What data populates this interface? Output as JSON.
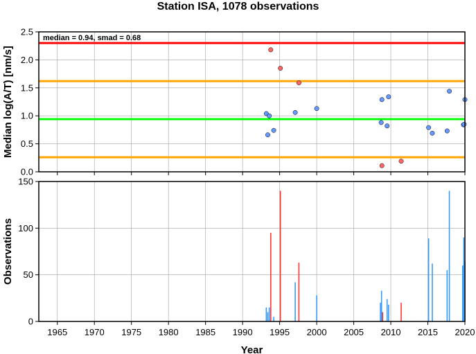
{
  "title": "Station ISA, 1078 observations",
  "chart_data": [
    {
      "type": "scatter",
      "ylabel": "Median log(A/T) [nm/s]",
      "xlim": [
        1962.5,
        2020
      ],
      "ylim": [
        0,
        2.5
      ],
      "yticks": [
        0,
        0.5,
        1,
        1.5,
        2,
        2.5
      ],
      "ytick_labels": [
        "0.0",
        "0.5",
        "1.0",
        "1.5",
        "2.0",
        "2.5"
      ],
      "grid": true,
      "annotation": "median = 0.94, smad = 0.68",
      "reference_lines": [
        {
          "value": 2.3,
          "color": "#ff0000"
        },
        {
          "value": 1.62,
          "color": "#ffa500"
        },
        {
          "value": 0.94,
          "color": "#00ff00"
        },
        {
          "value": 0.26,
          "color": "#ffa500"
        }
      ],
      "series": [
        {
          "color": "#6699ff",
          "points": [
            [
              1993.2,
              1.04
            ],
            [
              1993.4,
              0.66
            ],
            [
              1993.6,
              1.0
            ],
            [
              1994.2,
              0.74
            ],
            [
              1997.1,
              1.06
            ],
            [
              2000.0,
              1.13
            ],
            [
              2008.7,
              0.88
            ],
            [
              2008.8,
              1.29
            ],
            [
              2009.5,
              0.82
            ],
            [
              2009.7,
              1.34
            ],
            [
              2015.1,
              0.79
            ],
            [
              2015.6,
              0.69
            ],
            [
              2017.6,
              0.73
            ],
            [
              2017.9,
              1.44
            ],
            [
              2019.8,
              0.84
            ],
            [
              2019.9,
              0.85
            ],
            [
              2020.0,
              1.29
            ]
          ]
        },
        {
          "color": "#ff6666",
          "points": [
            [
              1993.8,
              2.18
            ],
            [
              1995.1,
              1.85
            ],
            [
              1997.6,
              1.59
            ],
            [
              2008.8,
              0.11
            ],
            [
              2011.4,
              0.19
            ]
          ]
        }
      ]
    },
    {
      "type": "bar",
      "ylabel": "Observations",
      "xlabel": "Year",
      "xlim": [
        1962.5,
        2020
      ],
      "ylim": [
        0,
        150
      ],
      "yticks": [
        0,
        50,
        100,
        150
      ],
      "ytick_labels": [
        "0",
        "50",
        "100",
        "150"
      ],
      "xticks": [
        1965,
        1970,
        1975,
        1980,
        1985,
        1990,
        1995,
        2000,
        2005,
        2010,
        2015,
        2020
      ],
      "xtick_labels": [
        "1965",
        "1970",
        "1975",
        "1980",
        "1985",
        "1990",
        "1995",
        "2000",
        "2005",
        "2010",
        "2015",
        "2020"
      ],
      "grid": true,
      "bars": [
        {
          "x": 1993.2,
          "value": 15,
          "color": "#3399ff"
        },
        {
          "x": 1993.4,
          "value": 10,
          "color": "#3399ff"
        },
        {
          "x": 1993.6,
          "value": 15,
          "color": "#3399ff"
        },
        {
          "x": 1993.8,
          "value": 95,
          "color": "#ff3333"
        },
        {
          "x": 1994.2,
          "value": 5,
          "color": "#3399ff"
        },
        {
          "x": 1995.1,
          "value": 140,
          "color": "#ff3333"
        },
        {
          "x": 1997.1,
          "value": 42,
          "color": "#3399ff"
        },
        {
          "x": 1997.6,
          "value": 63,
          "color": "#ff3333"
        },
        {
          "x": 2000.0,
          "value": 28,
          "color": "#3399ff"
        },
        {
          "x": 2008.6,
          "value": 20,
          "color": "#3399ff"
        },
        {
          "x": 2008.75,
          "value": 33,
          "color": "#3399ff"
        },
        {
          "x": 2008.9,
          "value": 10,
          "color": "#ff3333"
        },
        {
          "x": 2009.5,
          "value": 24,
          "color": "#3399ff"
        },
        {
          "x": 2009.7,
          "value": 18,
          "color": "#3399ff"
        },
        {
          "x": 2011.4,
          "value": 20,
          "color": "#ff3333"
        },
        {
          "x": 2015.1,
          "value": 89,
          "color": "#3399ff"
        },
        {
          "x": 2015.6,
          "value": 62,
          "color": "#3399ff"
        },
        {
          "x": 2017.6,
          "value": 55,
          "color": "#3399ff"
        },
        {
          "x": 2017.9,
          "value": 140,
          "color": "#3399ff"
        },
        {
          "x": 2019.7,
          "value": 60,
          "color": "#3399ff"
        },
        {
          "x": 2019.85,
          "value": 90,
          "color": "#3399ff"
        },
        {
          "x": 2020.0,
          "value": 65,
          "color": "#3399ff"
        }
      ]
    }
  ]
}
